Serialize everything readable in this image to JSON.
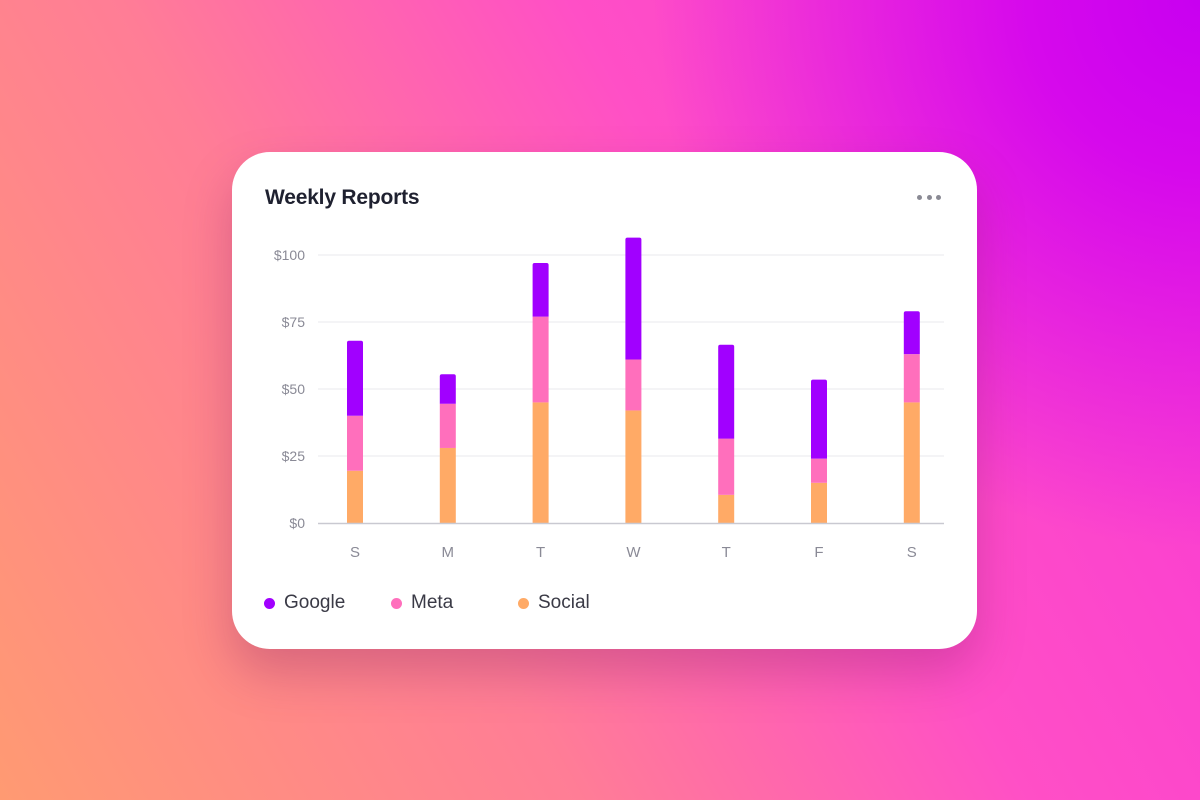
{
  "card": {
    "title": "Weekly Reports",
    "menu_icon": "more-horizontal-icon"
  },
  "colors": {
    "Google": "#a100ff",
    "Meta": "#ff6fbc",
    "Social": "#ffaa66",
    "grid": "#e8e8ee",
    "axis": "#c9c9d1",
    "tick_text": "#8a8a96"
  },
  "chart_data": {
    "type": "bar",
    "stacked": true,
    "title": "Weekly Reports",
    "xlabel": "",
    "ylabel": "",
    "categories": [
      "S",
      "M",
      "T",
      "W",
      "T",
      "F",
      "S"
    ],
    "y_ticks": [
      "$0",
      "$25",
      "$50",
      "$75",
      "$100"
    ],
    "y_tick_values": [
      0,
      25,
      50,
      75,
      100
    ],
    "ylim": [
      0,
      110
    ],
    "grid": true,
    "legend_position": "bottom-left",
    "series": [
      {
        "name": "Social",
        "values": [
          19.5,
          28,
          45,
          42,
          10.5,
          15,
          45
        ]
      },
      {
        "name": "Meta",
        "values": [
          20.5,
          16.5,
          32,
          19,
          21,
          9,
          18
        ]
      },
      {
        "name": "Google",
        "values": [
          28,
          11,
          20,
          45.5,
          35,
          29.5,
          16
        ]
      }
    ]
  },
  "legend": [
    {
      "label": "Google",
      "color": "#a100ff"
    },
    {
      "label": "Meta",
      "color": "#ff6fbc"
    },
    {
      "label": "Social",
      "color": "#ffaa66"
    }
  ]
}
